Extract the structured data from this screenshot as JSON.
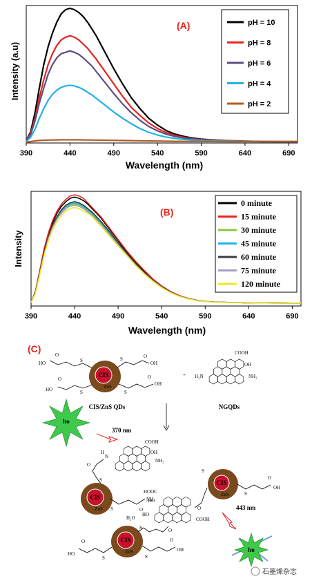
{
  "chart_data": [
    {
      "type": "line",
      "panel_label": "(A)",
      "xlabel": "Wavelength (nm)",
      "ylabel": "Intensity (a.u)",
      "xlim": [
        390,
        700
      ],
      "ylim": [
        0,
        1.0
      ],
      "x_ticks": [
        "390",
        "440",
        "490",
        "540",
        "590",
        "640",
        "690"
      ],
      "grid": false,
      "legend_position": "top-right",
      "x": [
        390,
        395,
        400,
        405,
        410,
        415,
        420,
        425,
        430,
        435,
        440,
        445,
        450,
        455,
        460,
        465,
        470,
        480,
        490,
        500,
        510,
        520,
        530,
        540,
        550,
        560,
        570,
        580,
        590,
        600,
        620,
        640,
        660,
        680,
        700
      ],
      "series": [
        {
          "name": "pH = 10",
          "color": "#000000",
          "values": [
            0.02,
            0.08,
            0.22,
            0.4,
            0.57,
            0.7,
            0.8,
            0.88,
            0.94,
            0.97,
            0.98,
            0.97,
            0.95,
            0.92,
            0.88,
            0.83,
            0.78,
            0.66,
            0.54,
            0.43,
            0.33,
            0.25,
            0.18,
            0.13,
            0.09,
            0.065,
            0.048,
            0.036,
            0.028,
            0.023,
            0.017,
            0.013,
            0.011,
            0.01,
            0.01
          ]
        },
        {
          "name": "pH = 8",
          "color": "#e8231d",
          "values": [
            0.02,
            0.07,
            0.18,
            0.33,
            0.46,
            0.57,
            0.65,
            0.71,
            0.75,
            0.77,
            0.78,
            0.77,
            0.75,
            0.72,
            0.69,
            0.65,
            0.61,
            0.52,
            0.43,
            0.34,
            0.26,
            0.2,
            0.145,
            0.105,
            0.075,
            0.055,
            0.041,
            0.031,
            0.025,
            0.021,
            0.016,
            0.012,
            0.01,
            0.01,
            0.01
          ]
        },
        {
          "name": "pH = 6",
          "color": "#5e4e82",
          "values": [
            0.02,
            0.06,
            0.16,
            0.29,
            0.4,
            0.5,
            0.57,
            0.62,
            0.65,
            0.66,
            0.67,
            0.66,
            0.645,
            0.62,
            0.59,
            0.56,
            0.52,
            0.44,
            0.36,
            0.285,
            0.22,
            0.165,
            0.12,
            0.088,
            0.064,
            0.047,
            0.036,
            0.028,
            0.022,
            0.019,
            0.015,
            0.012,
            0.01,
            0.01,
            0.01
          ]
        },
        {
          "name": "pH = 4",
          "color": "#1fb2e6",
          "values": [
            0.01,
            0.04,
            0.1,
            0.18,
            0.25,
            0.31,
            0.355,
            0.385,
            0.405,
            0.415,
            0.42,
            0.415,
            0.405,
            0.39,
            0.37,
            0.35,
            0.325,
            0.275,
            0.225,
            0.18,
            0.14,
            0.105,
            0.078,
            0.058,
            0.043,
            0.033,
            0.026,
            0.021,
            0.018,
            0.016,
            0.013,
            0.011,
            0.01,
            0.01,
            0.01
          ]
        },
        {
          "name": "pH = 2",
          "color": "#b05d22",
          "values": [
            0.005,
            0.01,
            0.015,
            0.018,
            0.02,
            0.021,
            0.022,
            0.022,
            0.023,
            0.023,
            0.023,
            0.023,
            0.023,
            0.022,
            0.022,
            0.021,
            0.021,
            0.02,
            0.019,
            0.018,
            0.017,
            0.016,
            0.015,
            0.014,
            0.013,
            0.012,
            0.012,
            0.011,
            0.011,
            0.011,
            0.01,
            0.01,
            0.01,
            0.01,
            0.01
          ]
        }
      ]
    },
    {
      "type": "line",
      "panel_label": "(B)",
      "xlabel": "Wavelength (nm)",
      "ylabel": "Intensity",
      "xlim": [
        390,
        700
      ],
      "ylim": [
        0,
        1.0
      ],
      "x_ticks": [
        "390",
        "440",
        "490",
        "540",
        "590",
        "640",
        "690"
      ],
      "grid": false,
      "legend_position": "top-right",
      "x": [
        390,
        395,
        400,
        405,
        410,
        415,
        420,
        425,
        430,
        435,
        440,
        445,
        450,
        455,
        460,
        465,
        470,
        480,
        490,
        500,
        510,
        520,
        530,
        540,
        550,
        560,
        570,
        580,
        590,
        600,
        620,
        640,
        660,
        680,
        700
      ],
      "series": [
        {
          "name": "0 minute",
          "color": "#000000",
          "values": [
            0.03,
            0.12,
            0.3,
            0.48,
            0.62,
            0.73,
            0.81,
            0.87,
            0.91,
            0.94,
            0.95,
            0.94,
            0.92,
            0.89,
            0.85,
            0.81,
            0.77,
            0.67,
            0.57,
            0.47,
            0.38,
            0.3,
            0.23,
            0.17,
            0.125,
            0.09,
            0.065,
            0.05,
            0.04,
            0.035,
            0.03,
            0.028,
            0.027,
            0.026,
            0.025
          ]
        },
        {
          "name": "15 minute",
          "color": "#e8231d",
          "values": [
            0.03,
            0.13,
            0.31,
            0.5,
            0.64,
            0.75,
            0.83,
            0.89,
            0.93,
            0.96,
            0.97,
            0.96,
            0.94,
            0.9,
            0.86,
            0.82,
            0.78,
            0.68,
            0.58,
            0.48,
            0.39,
            0.31,
            0.235,
            0.175,
            0.128,
            0.092,
            0.067,
            0.051,
            0.041,
            0.036,
            0.031,
            0.029,
            0.027,
            0.026,
            0.025
          ]
        },
        {
          "name": "30 minute",
          "color": "#8cc63f",
          "values": [
            0.03,
            0.12,
            0.29,
            0.46,
            0.6,
            0.7,
            0.77,
            0.82,
            0.86,
            0.88,
            0.89,
            0.88,
            0.86,
            0.83,
            0.8,
            0.76,
            0.72,
            0.63,
            0.54,
            0.45,
            0.36,
            0.285,
            0.22,
            0.165,
            0.12,
            0.087,
            0.063,
            0.049,
            0.039,
            0.034,
            0.03,
            0.028,
            0.026,
            0.025,
            0.025
          ]
        },
        {
          "name": "45 minute",
          "color": "#1fb2e6",
          "values": [
            0.03,
            0.12,
            0.29,
            0.46,
            0.6,
            0.7,
            0.77,
            0.83,
            0.87,
            0.89,
            0.9,
            0.89,
            0.87,
            0.84,
            0.81,
            0.77,
            0.73,
            0.64,
            0.545,
            0.455,
            0.365,
            0.29,
            0.222,
            0.167,
            0.122,
            0.088,
            0.064,
            0.049,
            0.04,
            0.035,
            0.03,
            0.028,
            0.026,
            0.025,
            0.025
          ]
        },
        {
          "name": "60 minute",
          "color": "#3a3a3a",
          "values": [
            0.03,
            0.12,
            0.29,
            0.47,
            0.61,
            0.71,
            0.78,
            0.84,
            0.88,
            0.9,
            0.91,
            0.9,
            0.88,
            0.85,
            0.82,
            0.78,
            0.74,
            0.65,
            0.55,
            0.46,
            0.37,
            0.29,
            0.225,
            0.168,
            0.123,
            0.089,
            0.065,
            0.05,
            0.04,
            0.035,
            0.03,
            0.028,
            0.027,
            0.026,
            0.025
          ]
        },
        {
          "name": "75 minute",
          "color": "#a99bc9",
          "values": [
            0.03,
            0.11,
            0.28,
            0.45,
            0.59,
            0.69,
            0.76,
            0.81,
            0.85,
            0.87,
            0.88,
            0.87,
            0.85,
            0.82,
            0.79,
            0.75,
            0.71,
            0.62,
            0.535,
            0.445,
            0.358,
            0.283,
            0.218,
            0.163,
            0.119,
            0.086,
            0.063,
            0.048,
            0.039,
            0.034,
            0.03,
            0.028,
            0.026,
            0.025,
            0.025
          ]
        },
        {
          "name": "120 minute",
          "color": "#f2ea1c",
          "values": [
            0.03,
            0.11,
            0.27,
            0.44,
            0.57,
            0.67,
            0.74,
            0.79,
            0.83,
            0.85,
            0.86,
            0.85,
            0.83,
            0.81,
            0.78,
            0.74,
            0.7,
            0.61,
            0.525,
            0.44,
            0.355,
            0.28,
            0.215,
            0.16,
            0.117,
            0.085,
            0.062,
            0.048,
            0.039,
            0.034,
            0.03,
            0.028,
            0.026,
            0.025,
            0.025
          ]
        }
      ]
    }
  ],
  "scheme": {
    "panel_label": "(C)",
    "qd_core": "CIS",
    "qd_shell": "ZnS",
    "qd_caption": "CIS/ZnS QDs",
    "ngqd_caption": "NGQDs",
    "plus": "+",
    "excitation_label": "hυ",
    "excitation_wavelength": "370 nm",
    "emission_wavelength": "443 nm",
    "emission_label": "hυ",
    "water": "H₂O",
    "groups": {
      "cooh": "COOH",
      "hooc": "HOOC",
      "oh": "OH",
      "nh2": "NH₂",
      "h2n": "H₂N",
      "nh": "NH",
      "n": "N",
      "ho": "HO",
      "s": "S",
      "o": "O",
      "h": "H"
    },
    "colors": {
      "shell": "#7a4a1d",
      "core": "#c8112a",
      "star": "#3ec94a",
      "arrow": "#e8231d"
    }
  },
  "watermark": "石墨烯杂志"
}
